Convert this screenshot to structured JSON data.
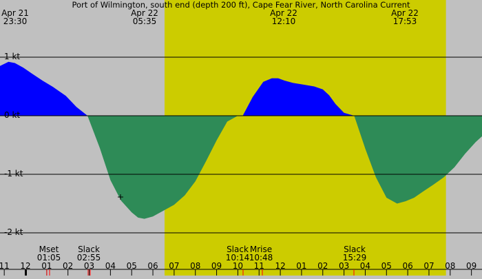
{
  "title": "Port of Wilmington, south end (depth 200 ft), Cape Fear River, North Carolina Current",
  "colors": {
    "night": "#c0c0c0",
    "day": "#cccc00",
    "flood": "#0000ff",
    "ebb": "#2e8b57",
    "grid": "#000000",
    "event_tick": "#ff0000"
  },
  "timestamps": [
    {
      "date": "Apr 21",
      "time": "23:30"
    },
    {
      "date": "Apr 22",
      "time": "05:35"
    },
    {
      "date": "Apr 22",
      "time": "12:10"
    },
    {
      "date": "Apr 22",
      "time": "17:53"
    }
  ],
  "events": [
    {
      "label": "Mset",
      "time": "01:05"
    },
    {
      "label": "Slack",
      "time": "02:55"
    },
    {
      "label": "Slack",
      "time": "10:14"
    },
    {
      "label": "Mrise",
      "time": "10:48"
    },
    {
      "label": "Slack",
      "time": "15:29"
    }
  ],
  "chart_data": {
    "type": "area",
    "title": "Port of Wilmington, south end (depth 200 ft), Cape Fear River, North Carolina Current",
    "ylabel": "",
    "y_unit": "kt",
    "y_ticks": [
      "1 kt",
      "0 kt",
      "-1 kt",
      "-2 kt"
    ],
    "y_tick_values": [
      1,
      0,
      -1,
      -2
    ],
    "ylim": [
      -2,
      1.8
    ],
    "x_unit": "hour",
    "xlim": [
      10.8,
      33.5
    ],
    "x_tick_labels": [
      "11",
      "12",
      "01",
      "02",
      "03",
      "04",
      "05",
      "06",
      "07",
      "08",
      "09",
      "10",
      "11",
      "12",
      "01",
      "02",
      "03",
      "04",
      "05",
      "06",
      "07",
      "08",
      "09"
    ],
    "x_tick_hours": [
      11,
      12,
      13,
      14,
      15,
      16,
      17,
      18,
      19,
      20,
      21,
      22,
      23,
      24,
      25,
      26,
      27,
      28,
      29,
      30,
      31,
      32,
      33
    ],
    "daylight": {
      "start_hour": 18.55,
      "end_hour": 31.8
    },
    "series": [
      {
        "x": [
          10.8,
          11.2,
          11.5,
          11.9,
          12.3,
          12.8,
          13.3,
          13.9,
          14.4,
          14.92,
          15.5,
          16.0,
          16.5,
          17.0,
          17.3,
          17.6,
          18.0,
          18.5,
          19.0,
          19.5,
          20.0,
          20.5,
          21.0,
          21.5,
          22.0,
          22.23,
          22.7,
          23.2,
          23.6,
          23.9,
          24.2,
          24.6,
          25.1,
          25.6,
          26.0,
          26.3,
          26.6,
          27.0,
          27.48,
          28.0,
          28.5,
          29.0,
          29.5,
          29.9,
          30.3,
          30.7,
          31.2,
          31.7,
          32.2,
          32.7,
          33.2,
          33.5
        ],
        "y": [
          0.85,
          0.92,
          0.9,
          0.82,
          0.72,
          0.6,
          0.49,
          0.34,
          0.15,
          0.0,
          -0.55,
          -1.1,
          -1.45,
          -1.65,
          -1.74,
          -1.76,
          -1.72,
          -1.62,
          -1.52,
          -1.36,
          -1.12,
          -0.78,
          -0.42,
          -0.1,
          0.0,
          0.0,
          0.32,
          0.58,
          0.64,
          0.64,
          0.6,
          0.56,
          0.53,
          0.5,
          0.45,
          0.35,
          0.2,
          0.05,
          0.0,
          -0.56,
          -1.05,
          -1.4,
          -1.5,
          -1.46,
          -1.4,
          -1.3,
          -1.18,
          -1.05,
          -0.88,
          -0.65,
          -0.45,
          -0.35
        ]
      }
    ]
  }
}
